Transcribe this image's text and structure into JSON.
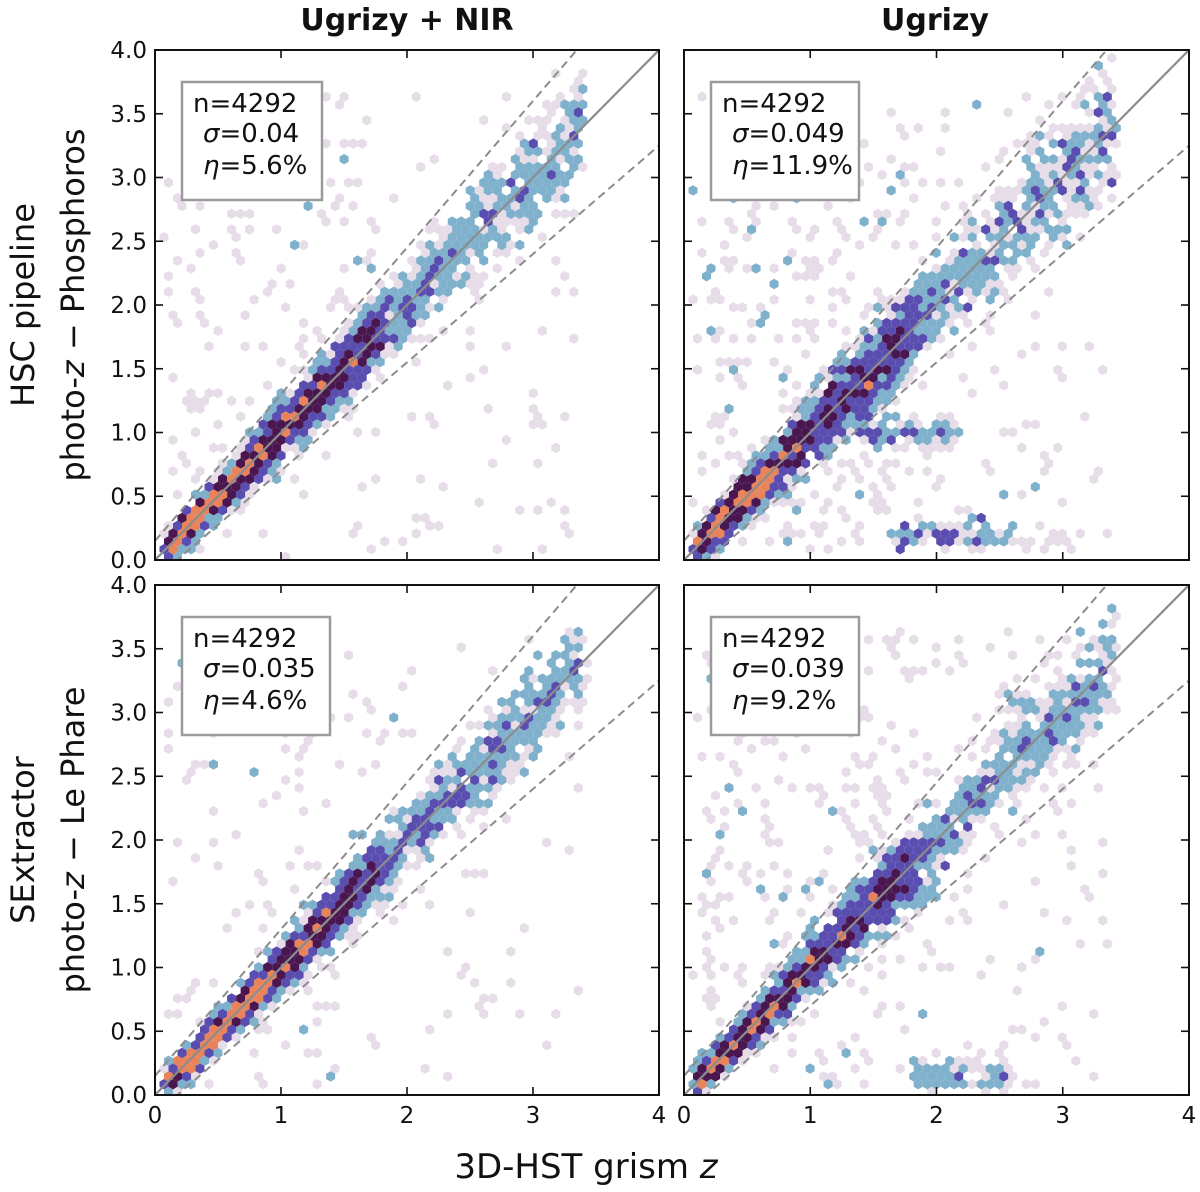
{
  "figure": {
    "col_titles": [
      "Ugrizy + NIR",
      "Ugrizy"
    ],
    "row_labels": [
      {
        "line1": "HSC pipeline",
        "line2_pre": "photo-",
        "line2_ital": "z",
        "line2_post": " − Phosphoros"
      },
      {
        "line1": "SExtractor",
        "line2_pre": "photo-",
        "line2_ital": "z",
        "line2_post": " − Le Phare"
      }
    ],
    "xlabel_pre": "3D-HST grism ",
    "xlabel_ital": "z",
    "colors": {
      "one_to_one": "#8c8c8c",
      "outlier_bounds": "#8c8c8c",
      "stat_box_edge": "#9a9a9a",
      "hex_low": "#e6dde8",
      "hex_mid_low": "#7fb0cc",
      "hex_mid": "#5a4db0",
      "hex_high": "#4a1650",
      "hex_peak": "#e8835a"
    }
  },
  "chart_data": [
    {
      "type": "scatter",
      "panel": "top-left",
      "title": "Ugrizy + NIR",
      "xlabel": "3D-HST grism z",
      "ylabel": "HSC pipeline photo-z − Phosphoros",
      "xlim": [
        0,
        4
      ],
      "ylim": [
        0,
        4.0
      ],
      "xticks": [
        0,
        1,
        2,
        3,
        4
      ],
      "yticks": [
        0.0,
        0.5,
        1.0,
        1.5,
        2.0,
        2.5,
        3.0,
        3.5,
        4.0
      ],
      "reference_lines": [
        "z_phot = z_spec",
        "z_phot = z_spec ± 0.15(1+z_spec)"
      ],
      "stats": {
        "n": "4292",
        "sigma": "0.04",
        "eta": "5.6%"
      },
      "scatter": 0.04,
      "outlier_fraction": 0.056,
      "catastrophic_clusters": [],
      "legend_placement": "top-left"
    },
    {
      "type": "scatter",
      "panel": "top-right",
      "title": "Ugrizy",
      "xlabel": "3D-HST grism z",
      "ylabel": "HSC pipeline photo-z − Phosphoros",
      "xlim": [
        0,
        4
      ],
      "ylim": [
        0,
        4.0
      ],
      "xticks": [
        0,
        1,
        2,
        3,
        4
      ],
      "yticks": [
        0.0,
        0.5,
        1.0,
        1.5,
        2.0,
        2.5,
        3.0,
        3.5,
        4.0
      ],
      "reference_lines": [
        "z_phot = z_spec",
        "z_phot = z_spec ± 0.15(1+z_spec)"
      ],
      "stats": {
        "n": "4292",
        "sigma": "0.049",
        "eta": "11.9%"
      },
      "scatter": 0.049,
      "outlier_fraction": 0.119,
      "catastrophic_clusters": [
        {
          "x_range": [
            1.7,
            2.6
          ],
          "y": 0.2
        },
        {
          "x_range": [
            1.4,
            2.2
          ],
          "y": 1.0
        }
      ],
      "legend_placement": "top-left"
    },
    {
      "type": "scatter",
      "panel": "bottom-left",
      "title": "Ugrizy + NIR",
      "xlabel": "3D-HST grism z",
      "ylabel": "SExtractor photo-z − Le Phare",
      "xlim": [
        0,
        4
      ],
      "ylim": [
        0,
        4.0
      ],
      "xticks": [
        0,
        1,
        2,
        3,
        4
      ],
      "yticks": [
        0.0,
        0.5,
        1.0,
        1.5,
        2.0,
        2.5,
        3.0,
        3.5,
        4.0
      ],
      "reference_lines": [
        "z_phot = z_spec",
        "z_phot = z_spec ± 0.15(1+z_spec)"
      ],
      "stats": {
        "n": "4292",
        "sigma": "0.035",
        "eta": "4.6%"
      },
      "scatter": 0.035,
      "outlier_fraction": 0.046,
      "catastrophic_clusters": [],
      "legend_placement": "top-left"
    },
    {
      "type": "scatter",
      "panel": "bottom-right",
      "title": "Ugrizy",
      "xlabel": "3D-HST grism z",
      "ylabel": "SExtractor photo-z − Le Phare",
      "xlim": [
        0,
        4
      ],
      "ylim": [
        0,
        4.0
      ],
      "xticks": [
        0,
        1,
        2,
        3,
        4
      ],
      "yticks": [
        0.0,
        0.5,
        1.0,
        1.5,
        2.0,
        2.5,
        3.0,
        3.5,
        4.0
      ],
      "reference_lines": [
        "z_phot = z_spec",
        "z_phot = z_spec ± 0.15(1+z_spec)"
      ],
      "stats": {
        "n": "4292",
        "sigma": "0.039",
        "eta": "9.2%"
      },
      "scatter": 0.039,
      "outlier_fraction": 0.092,
      "catastrophic_clusters": [
        {
          "x_range": [
            1.8,
            2.6
          ],
          "y": 0.15
        },
        {
          "x_range": [
            1.3,
            2.0
          ],
          "y": 1.6
        }
      ],
      "legend_placement": "top-left"
    }
  ]
}
